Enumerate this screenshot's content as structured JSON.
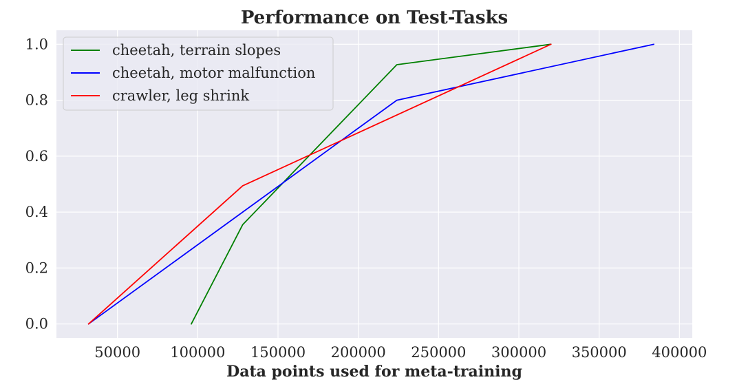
{
  "chart_data": {
    "type": "line",
    "title": "Performance on Test-Tasks",
    "xlabel": "Data points used for meta-training",
    "ylabel": "",
    "xlim": [
      12000,
      408000
    ],
    "ylim": [
      -0.05,
      1.05
    ],
    "x_ticks": [
      50000,
      100000,
      150000,
      200000,
      250000,
      300000,
      350000,
      400000
    ],
    "x_tick_labels": [
      "50000",
      "100000",
      "150000",
      "200000",
      "250000",
      "300000",
      "350000",
      "400000"
    ],
    "y_ticks": [
      0.0,
      0.2,
      0.4,
      0.6,
      0.8,
      1.0
    ],
    "y_tick_labels": [
      "0.0",
      "0.2",
      "0.4",
      "0.6",
      "0.8",
      "1.0"
    ],
    "grid": true,
    "legend_position": "top-left",
    "background_color": "#eaeaf2",
    "series": [
      {
        "name": "cheetah, terrain slopes",
        "color": "#008000",
        "x": [
          96000,
          128000,
          224000,
          320000
        ],
        "y": [
          0.0,
          0.355,
          0.927,
          1.0
        ]
      },
      {
        "name": "cheetah, motor malfunction",
        "color": "#0000ff",
        "x": [
          32000,
          224000,
          384000
        ],
        "y": [
          0.0,
          0.8,
          1.0
        ]
      },
      {
        "name": "crawler, leg shrink",
        "color": "#ff0000",
        "x": [
          32000,
          128000,
          320000
        ],
        "y": [
          0.0,
          0.494,
          1.0
        ]
      }
    ]
  }
}
